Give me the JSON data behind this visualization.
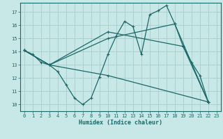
{
  "xlabel": "Humidex (Indice chaleur)",
  "bg_color": "#c8e8e8",
  "grid_color": "#a8cccc",
  "line_color": "#1a6868",
  "xlim": [
    -0.5,
    23.5
  ],
  "ylim": [
    9.5,
    17.7
  ],
  "xticks": [
    0,
    1,
    2,
    3,
    4,
    5,
    6,
    7,
    8,
    9,
    10,
    11,
    12,
    13,
    14,
    15,
    16,
    17,
    18,
    19,
    20,
    21,
    22,
    23
  ],
  "yticks": [
    10,
    11,
    12,
    13,
    14,
    15,
    16,
    17
  ],
  "series0_x": [
    0,
    1,
    2,
    3,
    4,
    5,
    6,
    7,
    8,
    9,
    10,
    11,
    12,
    13,
    14,
    15,
    16,
    17,
    18,
    19,
    20,
    21,
    22
  ],
  "series0_y": [
    14.1,
    13.8,
    13.2,
    13.0,
    12.5,
    11.5,
    10.5,
    10.0,
    10.5,
    12.1,
    13.8,
    15.2,
    16.3,
    15.9,
    13.8,
    16.8,
    17.1,
    17.5,
    16.1,
    14.4,
    13.2,
    12.2,
    10.2
  ],
  "series1_x": [
    0,
    3,
    10,
    22
  ],
  "series1_y": [
    14.1,
    13.0,
    12.2,
    10.2
  ],
  "series2_x": [
    0,
    3,
    10,
    18,
    22
  ],
  "series2_y": [
    14.1,
    13.0,
    15.0,
    16.1,
    10.2
  ],
  "series3_x": [
    0,
    3,
    10,
    19,
    22
  ],
  "series3_y": [
    14.1,
    13.0,
    15.5,
    14.4,
    10.2
  ]
}
